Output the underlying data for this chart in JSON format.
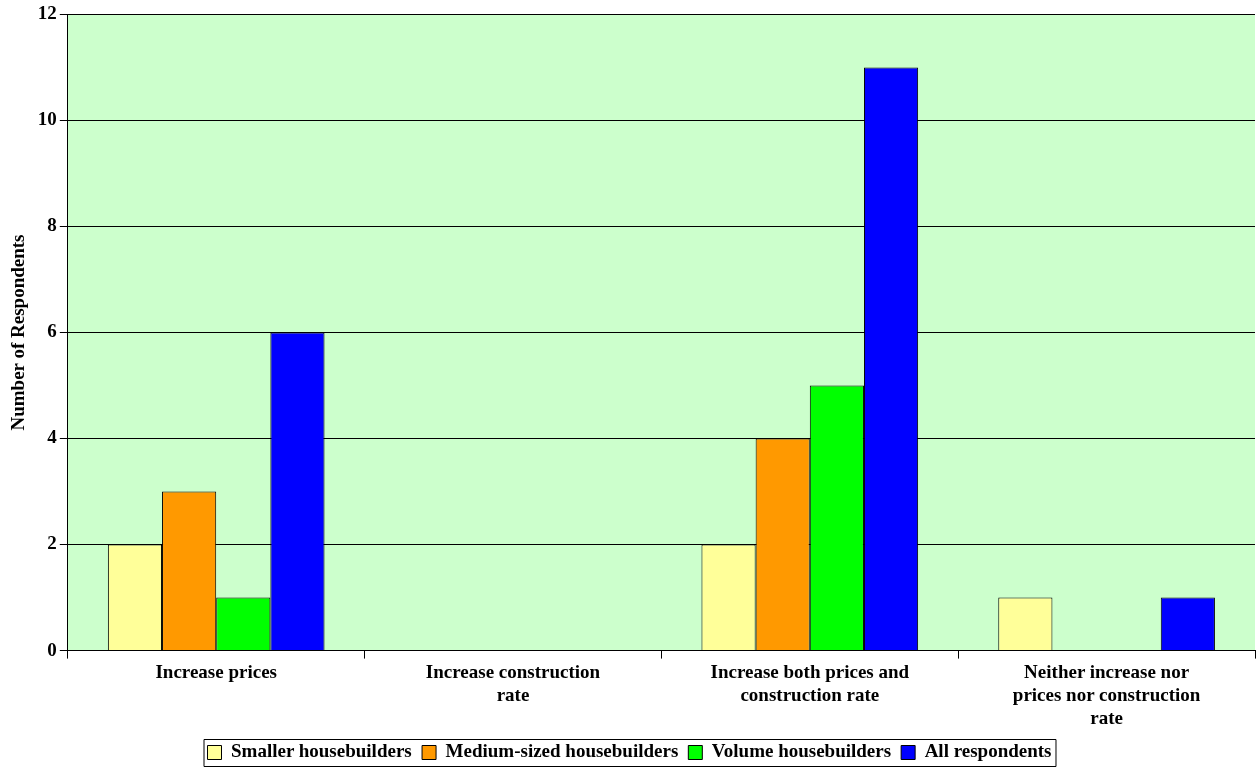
{
  "chart_data": {
    "type": "bar",
    "ylabel": "Number of Respondents",
    "categories": [
      "Increase prices",
      "Increase construction rate",
      "Increase both prices and construction rate",
      "Neither increase nor prices nor construction rate"
    ],
    "series": [
      {
        "name": "Smaller housebuilders",
        "color": "#ffff99",
        "values": [
          2,
          0,
          2,
          1
        ]
      },
      {
        "name": "Medium-sized housebuilders",
        "color": "#ff9900",
        "values": [
          3,
          0,
          4,
          0
        ]
      },
      {
        "name": "Volume housebuilders",
        "color": "#00ff00",
        "values": [
          1,
          0,
          5,
          0
        ]
      },
      {
        "name": "All respondents",
        "color": "#0000ff",
        "values": [
          6,
          0,
          11,
          1
        ]
      }
    ],
    "ylim": [
      0,
      12
    ],
    "yticks": [
      0,
      2,
      4,
      6,
      8,
      10,
      12
    ],
    "grid": "y",
    "legend": "bottom"
  }
}
